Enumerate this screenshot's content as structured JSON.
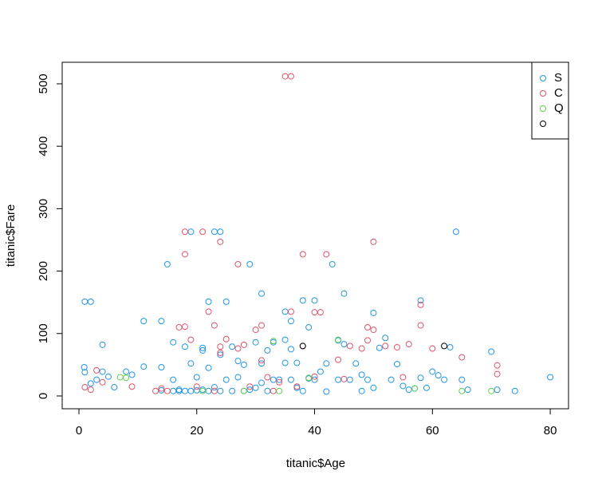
{
  "chart_data": {
    "type": "scatter",
    "x_label": "titanic$Age",
    "y_label": "titanic$Fare",
    "xlim": [
      -2.84,
      83.1
    ],
    "ylim": [
      -20.5,
      534.5
    ],
    "xticks": [
      0,
      20,
      40,
      60,
      80
    ],
    "yticks": [
      0,
      100,
      200,
      300,
      400,
      500
    ],
    "legend": "top-right",
    "series": [
      {
        "name": "S",
        "color": "#2297E6",
        "x": [
          1,
          2,
          0.9,
          1,
          2,
          3,
          4,
          4,
          5,
          6,
          8,
          9,
          11,
          11,
          14,
          14,
          14,
          15,
          16,
          16,
          16,
          17,
          18,
          18,
          19,
          19,
          20,
          21,
          21,
          22,
          22,
          23,
          24,
          24,
          25,
          25,
          26,
          27,
          28,
          29,
          29,
          30,
          30,
          31,
          31,
          32,
          33,
          33,
          34,
          35,
          35,
          35,
          36,
          36,
          37,
          38,
          38,
          39,
          40,
          40,
          41,
          42,
          43,
          44,
          45,
          45,
          46,
          47,
          48,
          49,
          50,
          50,
          51,
          52,
          53,
          54,
          55,
          56,
          58,
          58,
          59,
          60,
          61,
          62,
          63,
          64,
          65,
          66,
          70,
          71,
          74,
          80,
          26,
          28,
          20,
          23,
          27,
          32,
          37,
          42,
          22,
          24,
          19,
          36,
          48,
          57,
          44,
          39,
          17,
          21,
          31
        ],
        "values": [
          151,
          151,
          46,
          38,
          20,
          26,
          82,
          39,
          31,
          14,
          39,
          34,
          120,
          47,
          120,
          46,
          9,
          211,
          86,
          26,
          8,
          8,
          79,
          8,
          263,
          8,
          9,
          77,
          10,
          151,
          8,
          263,
          263,
          8,
          151,
          26,
          8,
          30,
          8,
          211,
          10,
          86,
          13,
          164,
          52,
          8,
          86,
          26,
          26,
          135,
          90,
          53,
          120,
          26,
          53,
          153,
          8,
          110,
          153,
          26,
          39,
          52,
          211,
          26,
          164,
          83,
          26,
          52,
          34,
          26,
          133,
          13,
          77,
          93,
          26,
          51,
          16,
          10,
          153,
          29,
          13,
          39,
          33,
          26,
          78,
          263,
          26,
          10,
          71,
          10,
          8,
          30,
          79,
          50,
          30,
          14,
          56,
          73,
          13,
          7,
          45,
          66,
          52,
          75,
          8,
          12,
          89,
          28,
          10,
          73,
          21
        ]
      },
      {
        "name": "C",
        "color": "#DF536B",
        "x": [
          1,
          2,
          3,
          4,
          9,
          13,
          14,
          15,
          17,
          18,
          18,
          18,
          19,
          21,
          22,
          23,
          24,
          24,
          27,
          27,
          28,
          29,
          30,
          31,
          32,
          33,
          35,
          36,
          36,
          37,
          38,
          38,
          40,
          41,
          42,
          44,
          46,
          48,
          49,
          49,
          50,
          50,
          52,
          54,
          55,
          56,
          58,
          58,
          60,
          65,
          71,
          71,
          25,
          31,
          40,
          45,
          20,
          23,
          34,
          24
        ],
        "values": [
          14,
          10,
          41,
          22,
          15,
          8,
          12,
          8,
          110,
          263,
          227,
          111,
          90,
          263,
          135,
          113,
          247,
          69,
          211,
          76,
          82,
          15,
          106,
          113,
          30,
          8,
          512,
          512,
          135,
          15,
          227,
          80,
          134,
          134,
          227,
          58,
          80,
          76,
          110,
          89,
          247,
          106,
          80,
          78,
          30,
          83,
          146,
          113,
          76,
          62,
          49,
          35,
          91,
          57,
          31,
          27,
          15,
          8,
          22,
          79
        ]
      },
      {
        "name": "Q",
        "color": "#61D04F",
        "x": [
          7,
          8,
          21,
          28,
          33,
          34,
          44,
          57,
          65,
          70,
          39
        ],
        "values": [
          30,
          29,
          8,
          8,
          88,
          8,
          90,
          12,
          8,
          8,
          29
        ]
      },
      {
        "color": "#000000",
        "x": [
          38,
          62
        ],
        "values": [
          80,
          80
        ]
      }
    ]
  }
}
